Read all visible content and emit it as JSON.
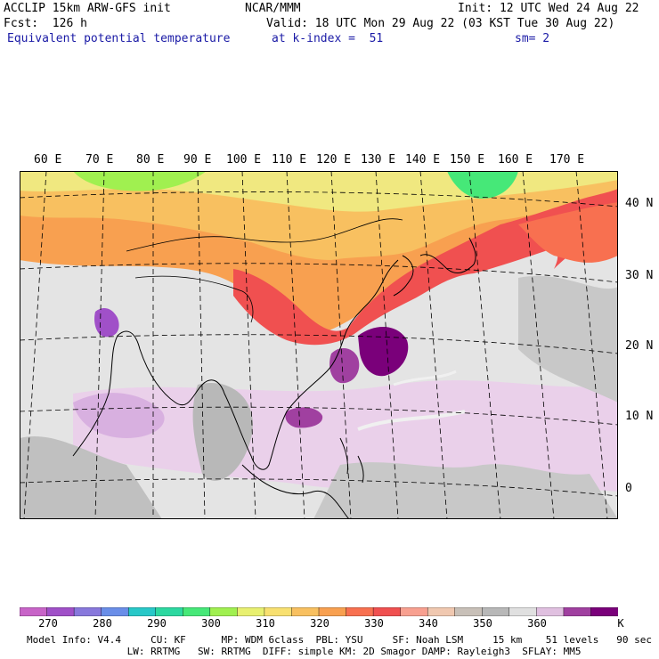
{
  "header": {
    "line1_left": "ACCLIP 15km ARW-GFS init",
    "line1_mid": "NCAR/MMM",
    "line1_right": "Init: 12 UTC Wed 24 Aug 22",
    "line2_left": "Fcst:  126 h",
    "line2_right": "Valid: 18 UTC Mon 29 Aug 22 (03 KST Tue 30 Aug 22)",
    "line3_left": "Equivalent potential temperature",
    "line3_mid": "at k-index =  51",
    "line3_right": "sm= 2"
  },
  "map": {
    "lon_labels": [
      "60 E",
      "70 E",
      "80 E",
      "90 E",
      "100 E",
      "110 E",
      "120 E",
      "130 E",
      "140 E",
      "150 E",
      "160 E",
      "170 E"
    ],
    "lat_labels": [
      "40 N",
      "30 N",
      "20 N",
      "10 N",
      "0"
    ]
  },
  "colorbar": {
    "colors": [
      "#c864c8",
      "#a050c8",
      "#8878dc",
      "#6a8ee8",
      "#28c8c8",
      "#2cd8a0",
      "#46e878",
      "#a0f050",
      "#e8f070",
      "#f8e070",
      "#f8c060",
      "#f8a050",
      "#f87050",
      "#f05050",
      "#f8a090",
      "#f0c8b0",
      "#c8c0b8",
      "#b8b8b8",
      "#e0e0e0",
      "#e0c0e0",
      "#a040a0",
      "#7a007a"
    ],
    "labels": [
      "270",
      "280",
      "290",
      "300",
      "310",
      "320",
      "330",
      "340",
      "350",
      "360"
    ],
    "unit": "K"
  },
  "footer": {
    "line1": "Model Info: V4.4     CU: KF      MP: WDM 6class  PBL: YSU     SF: Noah LSM     15 km    51 levels   90 sec",
    "line2": "                 LW: RRTMG   SW: RRTMG  DIFF: simple KM: 2D Smagor DAMP: Rayleigh3  SFLAY: MM5"
  }
}
